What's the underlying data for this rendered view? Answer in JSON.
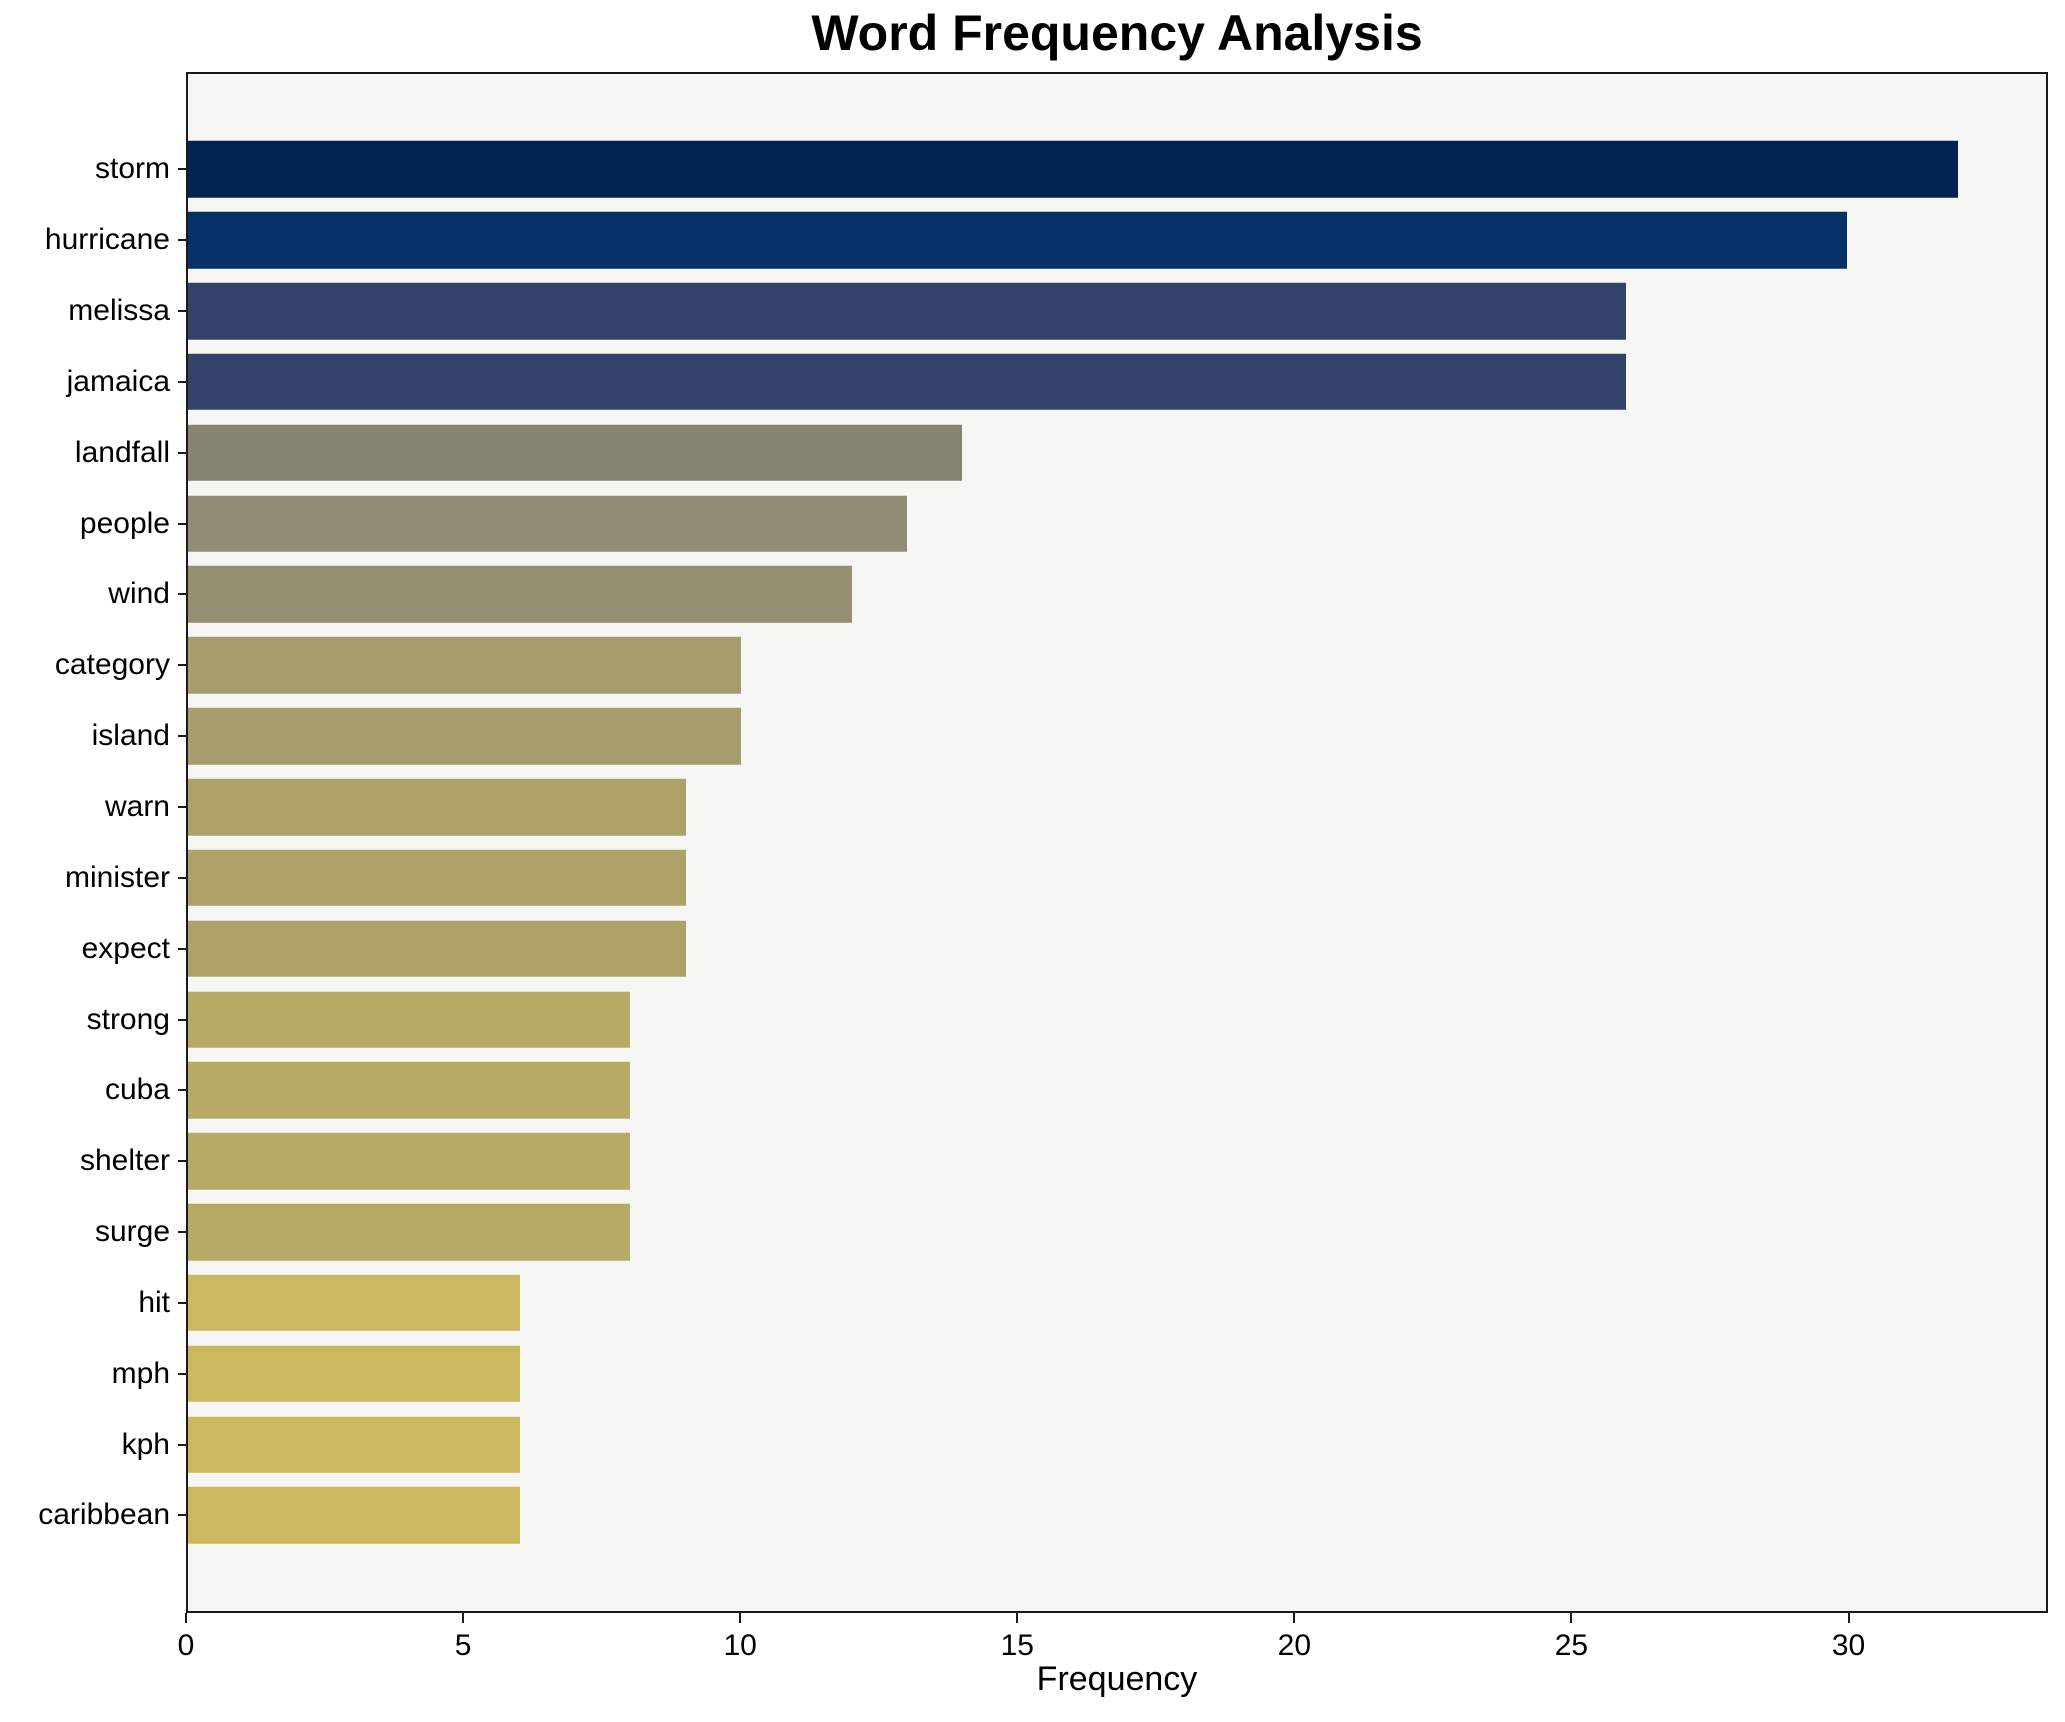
{
  "chart_data": {
    "type": "bar",
    "orientation": "horizontal",
    "title": "Word Frequency Analysis",
    "xlabel": "Frequency",
    "ylabel": "",
    "xlim": [
      0,
      33.6
    ],
    "x_ticks": [
      0,
      5,
      10,
      15,
      20,
      25,
      30
    ],
    "grid": false,
    "legend_position": "none",
    "plot_background": "#f6f6f4",
    "spine_color": "#1a1a1a",
    "categories": [
      "storm",
      "hurricane",
      "melissa",
      "jamaica",
      "landfall",
      "people",
      "wind",
      "category",
      "island",
      "warn",
      "minister",
      "expect",
      "strong",
      "cuba",
      "shelter",
      "surge",
      "hit",
      "mph",
      "kph",
      "caribbean"
    ],
    "values": [
      32,
      30,
      26,
      26,
      14,
      13,
      12,
      10,
      10,
      9,
      9,
      9,
      8,
      8,
      8,
      8,
      6,
      6,
      6,
      6
    ],
    "bar_colors": [
      "#00234f",
      "#073066",
      "#334269",
      "#334269",
      "#87856f",
      "#908c75",
      "#969072",
      "#a69c6e",
      "#a69c6e",
      "#aea26b",
      "#aea26b",
      "#aea26b",
      "#b7aa66",
      "#b7aa66",
      "#b7aa66",
      "#b7aa66",
      "#ccb95f",
      "#ccb95f",
      "#ccb95f",
      "#ccb95f"
    ]
  }
}
